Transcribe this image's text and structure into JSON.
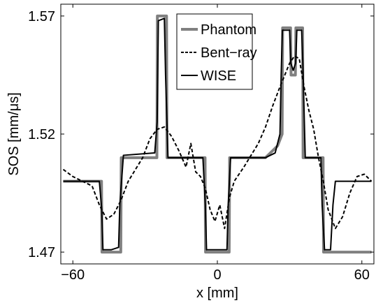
{
  "chart_data": {
    "type": "line",
    "title": "",
    "xlabel": "x [mm]",
    "ylabel": "SOS [mm/μs]",
    "xlim": [
      -65,
      65
    ],
    "ylim": [
      1.465,
      1.575
    ],
    "xticks": [
      -60,
      0,
      60
    ],
    "xtick_labels": [
      "−60",
      "0",
      "60"
    ],
    "yticks": [
      1.47,
      1.52,
      1.57
    ],
    "ytick_labels": [
      "1.47",
      "1.52",
      "1.57"
    ],
    "grid": false,
    "legend_position": "top-right",
    "series": [
      {
        "name": "Phantom",
        "style": "solid",
        "color": "#808080",
        "x": [
          -64,
          -48.1,
          -47.9,
          -40.1,
          -39.9,
          -25.1,
          -24.9,
          -21.1,
          -20.9,
          -5.1,
          -4.9,
          4.9,
          5.1,
          20,
          25,
          26.9,
          27.1,
          30.4,
          30.6,
          32.4,
          32.6,
          35.4,
          35.6,
          43.9,
          44.1,
          64
        ],
        "y": [
          1.5,
          1.5,
          1.47,
          1.47,
          1.51,
          1.51,
          1.57,
          1.57,
          1.51,
          1.51,
          1.47,
          1.47,
          1.51,
          1.51,
          1.515,
          1.52,
          1.565,
          1.565,
          1.545,
          1.545,
          1.565,
          1.565,
          1.51,
          1.51,
          1.47,
          1.47
        ]
      },
      {
        "name": "Bent−ray",
        "style": "dashed",
        "color": "#000000",
        "x": [
          -64,
          -60,
          -56,
          -52,
          -49,
          -46,
          -43,
          -40,
          -37,
          -34,
          -31,
          -28,
          -25,
          -22,
          -19,
          -16,
          -13,
          -11,
          -9,
          -7,
          -5,
          -3,
          -1,
          1,
          3,
          5,
          7,
          9,
          11,
          14,
          17,
          20,
          23,
          26,
          28,
          30,
          32,
          34,
          36,
          38,
          40,
          42,
          44,
          46,
          49,
          52,
          55,
          58,
          61,
          64
        ],
        "y": [
          1.505,
          1.502,
          1.5,
          1.498,
          1.49,
          1.484,
          1.486,
          1.492,
          1.5,
          1.505,
          1.51,
          1.518,
          1.522,
          1.523,
          1.519,
          1.513,
          1.506,
          1.516,
          1.504,
          1.502,
          1.497,
          1.488,
          1.483,
          1.49,
          1.48,
          1.493,
          1.5,
          1.503,
          1.506,
          1.511,
          1.516,
          1.523,
          1.532,
          1.54,
          1.545,
          1.55,
          1.553,
          1.552,
          1.54,
          1.53,
          1.522,
          1.51,
          1.5,
          1.488,
          1.48,
          1.485,
          1.495,
          1.502,
          1.503,
          1.5
        ]
      },
      {
        "name": "WISE",
        "style": "solid",
        "color": "#000000",
        "x": [
          -64,
          -49,
          -48,
          -47.5,
          -44,
          -41,
          -40.5,
          -39,
          -26,
          -25,
          -24.5,
          -22,
          -21.5,
          -20.5,
          -6,
          -5,
          -4.5,
          4,
          4.5,
          5.5,
          20,
          24,
          26,
          26.5,
          27,
          30,
          30.5,
          31.5,
          32.5,
          33,
          35,
          35.5,
          36.5,
          43,
          43.5,
          44.5,
          47,
          48,
          49,
          64
        ],
        "y": [
          1.5,
          1.5,
          1.488,
          1.471,
          1.471,
          1.472,
          1.49,
          1.511,
          1.512,
          1.525,
          1.568,
          1.569,
          1.545,
          1.51,
          1.51,
          1.49,
          1.471,
          1.471,
          1.49,
          1.51,
          1.51,
          1.512,
          1.52,
          1.545,
          1.564,
          1.564,
          1.55,
          1.547,
          1.55,
          1.564,
          1.564,
          1.55,
          1.51,
          1.51,
          1.49,
          1.471,
          1.471,
          1.49,
          1.5,
          1.5
        ]
      }
    ]
  }
}
